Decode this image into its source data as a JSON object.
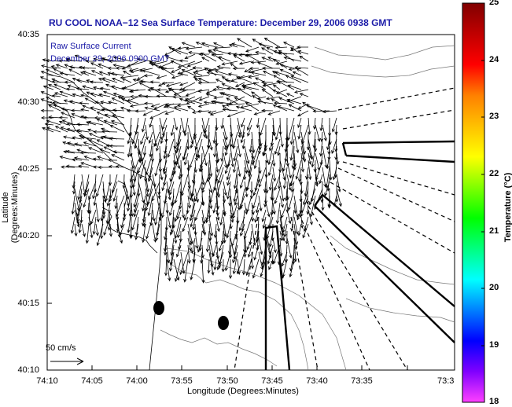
{
  "title": "RU COOL  NOAA−12  Sea Surface Temperature:  December 29, 2006 0938 GMT",
  "legend_text": {
    "line1": "Raw Surface Current",
    "line2": "December 29, 2006 0900 GMT"
  },
  "scale_label": "50 cm/s",
  "axes": {
    "x_label": "Longitude (Degrees:Minutes)",
    "y_label": "Latitude (Degrees:Minutes)",
    "x_ticks": [
      "74:10",
      "74:05",
      "74:00",
      "73:55",
      "73:50",
      "73:45",
      "73:40",
      "73:35",
      "73:3"
    ],
    "y_ticks": [
      "40:35",
      "40:30",
      "40:25",
      "40:20",
      "40:15",
      "40:10"
    ]
  },
  "colorbar": {
    "label": "Temperature (°C)",
    "ticks": [
      "25",
      "24",
      "23",
      "22",
      "21",
      "20",
      "19",
      "18"
    ],
    "min": 18,
    "max": 25,
    "colors": [
      "#ff40ff",
      "#8000ff",
      "#0000ff",
      "#0080ff",
      "#00ffff",
      "#00ff80",
      "#00ff00",
      "#80ff00",
      "#ffff00",
      "#ffc000",
      "#ff8000",
      "#ff0000",
      "#c00000",
      "#800000"
    ]
  },
  "colors": {
    "title": "#1c1ca8",
    "vector": "#000000",
    "contour": "#777777"
  }
}
